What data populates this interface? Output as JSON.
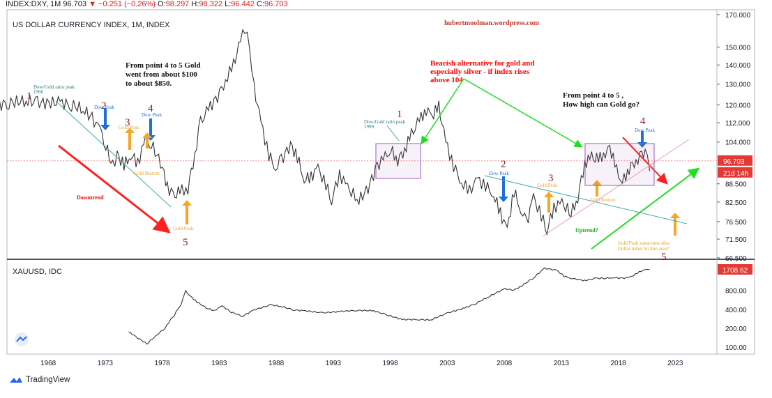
{
  "header": {
    "symbol": "INDEX:DXY, 1M",
    "last": "96.703",
    "arrow": "▼",
    "change": "−0.251 (−0.26%)",
    "o_label": "O:",
    "o": "98.297",
    "h_label": "H:",
    "h": "98.322",
    "l_label": "L:",
    "l": "96.442",
    "c_label": "C:",
    "c": "96.703"
  },
  "footer": {
    "brand": "TradingView"
  },
  "chart_data": [
    {
      "type": "line",
      "title": "US DOLLAR CURRENCY INDEX, 1M, INDEX",
      "watermark": "hubertmoolman.wordpress.com",
      "y_scale": "log",
      "y_ticks": [
        "170.000",
        "150.000",
        "140.000",
        "130.000",
        "120.000",
        "112.000",
        "104.000",
        "96.703",
        "88.500",
        "82.500",
        "76.500",
        "71.500",
        "66.500"
      ],
      "price_tag": "96.703",
      "countdown_tag": "21d 14h",
      "x_ticks": [
        "1968",
        "1973",
        "1978",
        "1983",
        "1988",
        "1993",
        "1998",
        "2003",
        "2008",
        "2013",
        "2018",
        "2023"
      ],
      "series": [
        {
          "x": [
            1963.5,
            1964.5,
            1966,
            1967,
            1969,
            1970,
            1971,
            1971.8,
            1972.5,
            1973,
            1973.3,
            1973.6,
            1974,
            1974.6,
            1975.2,
            1975.8,
            1976.5,
            1977,
            1977.8,
            1978.4,
            1978.9,
            1979.5,
            1980.2,
            1980.8,
            1981.3,
            1982,
            1982.8,
            1983.5,
            1984.2,
            1984.8,
            1985.2,
            1985.6,
            1986,
            1986.6,
            1987.3,
            1987.9,
            1988.4,
            1989.2,
            1989.8,
            1990.4,
            1991,
            1991.6,
            1992.3,
            1992.8,
            1993.5,
            1994.2,
            1995.2,
            1996,
            1996.8,
            1997.5,
            1998,
            1998.6,
            1999.2,
            1999.8,
            2000.5,
            2001.1,
            2001.6,
            2002.2,
            2002.8,
            2003.5,
            2004.2,
            2004.9,
            2005.6,
            2006.3,
            2007,
            2007.6,
            2008.2,
            2008.8,
            2009.4,
            2009.9,
            2010.5,
            2011.2,
            2011.7,
            2012.3,
            2013,
            2013.8,
            2014.4,
            2015,
            2015.6,
            2016.2,
            2016.8,
            2017.2,
            2017.8,
            2018.3,
            2018.9,
            2019.5,
            2020,
            2020.3,
            2020.7
          ],
          "values": [
            120,
            121,
            122,
            121,
            121,
            120,
            118,
            114,
            109,
            103,
            98,
            95,
            99,
            95,
            99,
            96,
            105,
            103,
            96,
            88,
            84,
            86,
            87,
            99,
            112,
            118,
            124,
            132,
            140,
            153,
            162,
            150,
            128,
            112,
            99,
            94,
            97,
            103,
            98,
            90,
            91,
            94,
            88,
            83,
            92,
            87,
            83,
            87,
            95,
            98,
            101,
            97,
            101,
            107,
            113,
            118,
            115,
            119,
            104,
            95,
            89,
            86,
            90,
            88,
            85,
            79,
            74,
            86,
            80,
            76,
            84,
            78,
            74,
            81,
            82,
            79,
            84,
            96,
            98,
            97,
            100,
            102,
            93,
            89,
            94,
            97,
            98,
            101,
            93
          ]
        }
      ],
      "annotations": {
        "text_gold_4_5": [
          "From point 4 to 5 Gold",
          "went from about $100",
          "to about $850."
        ],
        "text_bearish": [
          "Bearish alternative for gold and",
          "especially silver - if index rises",
          "above 104"
        ],
        "text_how_high": [
          "From point 4 to 5 ,",
          "How high can Gold go?"
        ],
        "dow_gold_1966": [
          "Dow/Gold ratio peak",
          "1966"
        ],
        "dow_gold_1999": [
          "Dow/Gold ratio peak",
          "1999"
        ],
        "dow_peak": "Dow Peak",
        "gold_peak": "Gold Peak",
        "gold_bottom": "Gold Bottom",
        "downtrend": "Downtrend",
        "uptrend": "Uptrend?",
        "gold_peak_future": [
          "Gold Peak some time after",
          "Dollar index hit line area?"
        ],
        "numbers": [
          "1",
          "2",
          "3",
          "4",
          "5"
        ],
        "colors": {
          "maroon": "#8b1a1a",
          "red": "#ff0000",
          "green": "#22dd22",
          "blue": "#1e6fd6",
          "orange": "#f5a623",
          "purple": "#9b59b6",
          "teal": "#4aa",
          "trend": "#e08080",
          "pink": "#f0a0a0"
        }
      }
    },
    {
      "type": "line",
      "title": "XAUUSD, IDC",
      "y_scale": "log",
      "y_ticks": [
        "800.00",
        "400.00",
        "200.00",
        "100.00"
      ],
      "price_tag": "1708.62",
      "series": [
        {
          "x": [
            1975,
            1975.8,
            1976.6,
            1977.4,
            1978.2,
            1979,
            1979.6,
            1980,
            1980.4,
            1981,
            1981.8,
            1982.5,
            1983.2,
            1984,
            1985,
            1986,
            1987.5,
            1988.5,
            1989.5,
            1990.5,
            1992,
            1993.5,
            1995,
            1996.5,
            1997.5,
            1999,
            2000.5,
            2001.5,
            2003,
            2004.5,
            2005.5,
            2006.5,
            2008,
            2008.8,
            2009.5,
            2010.5,
            2011.5,
            2012.5,
            2013.2,
            2013.8,
            2015,
            2016,
            2016.8,
            2017.5,
            2018.3,
            2019,
            2019.6,
            2020.3,
            2020.7
          ],
          "values": [
            175,
            140,
            112,
            150,
            200,
            320,
            480,
            780,
            650,
            520,
            420,
            380,
            450,
            360,
            310,
            390,
            470,
            440,
            390,
            380,
            350,
            370,
            385,
            380,
            330,
            275,
            275,
            270,
            350,
            420,
            500,
            620,
            850,
            810,
            950,
            1250,
            1800,
            1680,
            1350,
            1250,
            1150,
            1250,
            1250,
            1280,
            1250,
            1300,
            1500,
            1750,
            1708
          ]
        }
      ]
    }
  ]
}
